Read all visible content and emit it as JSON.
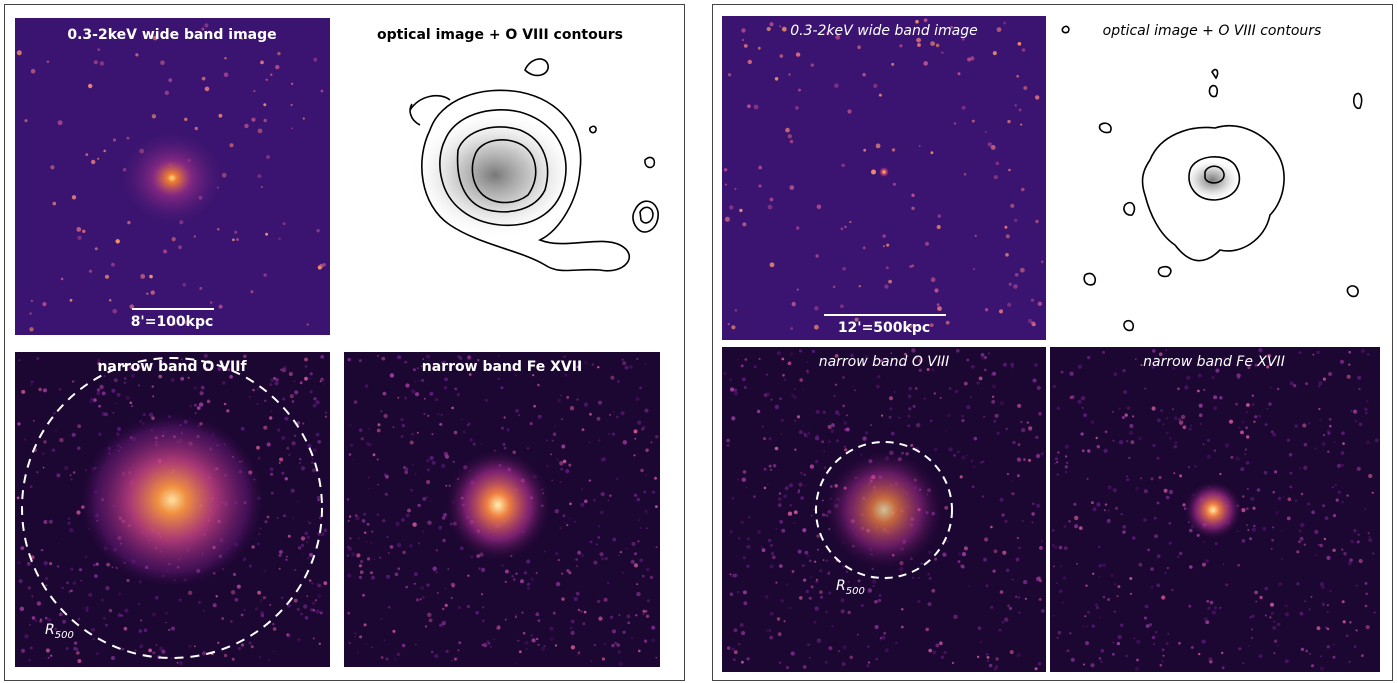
{
  "left_figure": {
    "wide_band": {
      "title": "0.3-2keV wide band image",
      "scale_bar": "8'=100kpc"
    },
    "optical": {
      "title": "optical image + O VIII contours"
    },
    "narrow_a": {
      "title": "narrow band O VIIf",
      "radius_label": {
        "symbol": "R",
        "subscript": "500"
      }
    },
    "narrow_b": {
      "title": "narrow band Fe XVII"
    }
  },
  "right_figure": {
    "wide_band": {
      "title": "0.3-2keV wide band image",
      "scale_bar": "12'=500kpc"
    },
    "optical": {
      "title": "optical image + O VIII contours"
    },
    "narrow_a": {
      "title": "narrow band  O VIII",
      "radius_label": {
        "symbol": "R",
        "subscript": "500"
      }
    },
    "narrow_b": {
      "title": "narrow band  Fe XVII"
    }
  }
}
